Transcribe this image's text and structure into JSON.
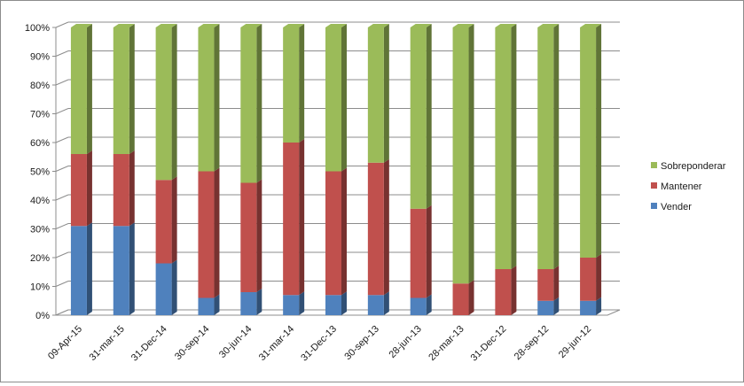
{
  "chart_data": {
    "type": "bar",
    "stacked": true,
    "percent_stacked": true,
    "three_d": true,
    "categories": [
      "09-Apr-15",
      "31-mar-15",
      "31-Dec-14",
      "30-sep-14",
      "30-jun-14",
      "31-mar-14",
      "31-Dec-13",
      "30-sep-13",
      "28-jun-13",
      "28-mar-13",
      "31-Dec-12",
      "28-sep-12",
      "29-jun-12"
    ],
    "series": [
      {
        "name": "Vender",
        "color": "#4f81bd",
        "values": [
          31,
          31,
          18,
          6,
          8,
          7,
          7,
          7,
          6,
          0,
          0,
          5,
          5
        ]
      },
      {
        "name": "Mantener",
        "color": "#c0504d",
        "values": [
          25,
          25,
          29,
          44,
          38,
          53,
          43,
          46,
          31,
          11,
          16,
          11,
          15
        ]
      },
      {
        "name": "Sobreponderar",
        "color": "#9bbb59",
        "values": [
          44,
          44,
          53,
          50,
          54,
          40,
          50,
          47,
          63,
          89,
          84,
          84,
          80
        ]
      }
    ],
    "y_ticks": [
      "0%",
      "10%",
      "20%",
      "30%",
      "40%",
      "50%",
      "60%",
      "70%",
      "80%",
      "90%",
      "100%"
    ],
    "ylim": [
      0,
      100
    ],
    "grid": true,
    "legend_position": "right",
    "legend_order": [
      "Sobreponderar",
      "Mantener",
      "Vender"
    ]
  }
}
